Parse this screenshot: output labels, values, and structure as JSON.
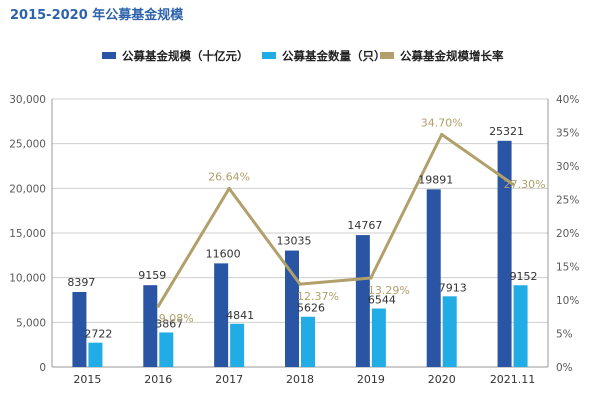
{
  "chart_data": {
    "type": "bar",
    "title": "2015-2020 年公募基金规模",
    "categories": [
      "2015",
      "2016",
      "2017",
      "2018",
      "2019",
      "2020",
      "2021.11"
    ],
    "series": [
      {
        "name": "公募基金规模（十亿元）",
        "kind": "bar",
        "axis": "left",
        "color": "#2a55a4",
        "values": [
          8397,
          9159,
          11600,
          13035,
          14767,
          19891,
          25321
        ],
        "labels": [
          "8397",
          "9159",
          "11600",
          "13035",
          "14767",
          "19891",
          "25321"
        ]
      },
      {
        "name": "公募基金数量（只）",
        "kind": "bar",
        "axis": "left",
        "color": "#22ace6",
        "values": [
          2722,
          3867,
          4841,
          5626,
          6544,
          7913,
          9152
        ],
        "labels": [
          "2722",
          "3867",
          "4841",
          "5626",
          "6544",
          "7913",
          "9152"
        ]
      },
      {
        "name": "公募基金规模增长率",
        "kind": "line",
        "axis": "right",
        "color": "#b1a06b",
        "values": [
          null,
          9.08,
          26.64,
          12.37,
          13.29,
          34.7,
          27.3
        ],
        "labels": [
          "",
          "9.08%",
          "26.64%",
          "12.37%",
          "13.29%",
          "34.70%",
          "27.30%"
        ]
      }
    ],
    "y_left": {
      "min": 0,
      "max": 30000,
      "ticks": [
        "0",
        "5,000",
        "10,000",
        "15,000",
        "20,000",
        "25,000",
        "30,000"
      ]
    },
    "y_right": {
      "min": 0,
      "max": 40,
      "ticks": [
        "0%",
        "5%",
        "10%",
        "15%",
        "20%",
        "25%",
        "30%",
        "35%",
        "40%"
      ]
    },
    "legend_position": "top"
  }
}
